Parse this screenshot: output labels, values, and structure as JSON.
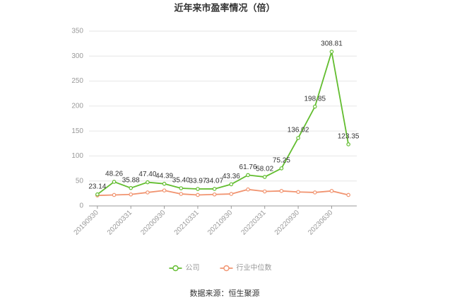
{
  "chart_data": {
    "type": "line",
    "title": "近年来市盈率情况（倍）",
    "categories": [
      "20190930",
      null,
      "20200331",
      null,
      "20200930",
      null,
      "20210331",
      null,
      "20210930",
      null,
      "20220331",
      null,
      "20220930",
      null,
      "20230630",
      null
    ],
    "series": [
      {
        "name": "公司",
        "color": "#62bd2f",
        "values": [
          23.14,
          48.26,
          35.88,
          47.4,
          44.39,
          35.4,
          33.97,
          34.07,
          43.36,
          61.76,
          58.02,
          75.25,
          136.02,
          198.85,
          308.81,
          123.35
        ],
        "value_labels": [
          "23.14",
          "48.26",
          "35.88",
          "47.40",
          "44.39",
          "35.40",
          "33.97",
          "34.07",
          "43.36",
          "61.76",
          "58.02",
          "75.25",
          "136.02",
          "198.85",
          "308.81",
          "123.35"
        ]
      },
      {
        "name": "行业中位数",
        "color": "#f19470",
        "values": [
          21,
          22,
          23,
          27,
          31,
          24,
          22,
          23,
          24,
          33,
          29,
          30,
          28,
          27,
          30,
          22
        ]
      }
    ],
    "ylim": [
      0,
      350
    ],
    "yticks": [
      0,
      50,
      100,
      150,
      200,
      250,
      300,
      350
    ],
    "grid": true,
    "source": "数据来源：恒生聚源"
  }
}
